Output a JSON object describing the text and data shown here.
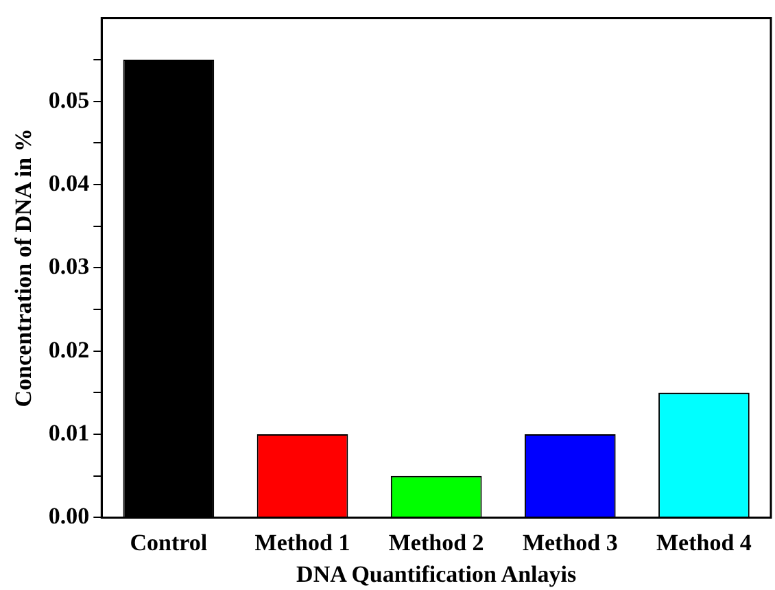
{
  "chart_data": {
    "type": "bar",
    "xlabel": "DNA Quantification Anlayis",
    "ylabel": "Concentration of DNA in %",
    "categories": [
      "Control",
      "Method 1",
      "Method 2",
      "Method 3",
      "Method 4"
    ],
    "values": [
      0.055,
      0.01,
      0.005,
      0.01,
      0.015
    ],
    "colors": [
      "#000000",
      "#ff0000",
      "#00ff00",
      "#0000ff",
      "#00ffff"
    ],
    "ylim": [
      0,
      0.06
    ],
    "yticks": [
      {
        "value": 0,
        "label": "0.00"
      },
      {
        "value": 0.005,
        "label": null
      },
      0.01,
      {
        "value": 0.015,
        "label": null
      },
      0.02,
      {
        "value": 0.025,
        "label": null
      },
      0.03,
      {
        "value": 0.035,
        "label": null
      },
      0.04,
      {
        "value": 0.045,
        "label": null
      },
      0.05,
      {
        "value": 0.055,
        "label": null
      }
    ],
    "grid": false,
    "legend": false
  }
}
